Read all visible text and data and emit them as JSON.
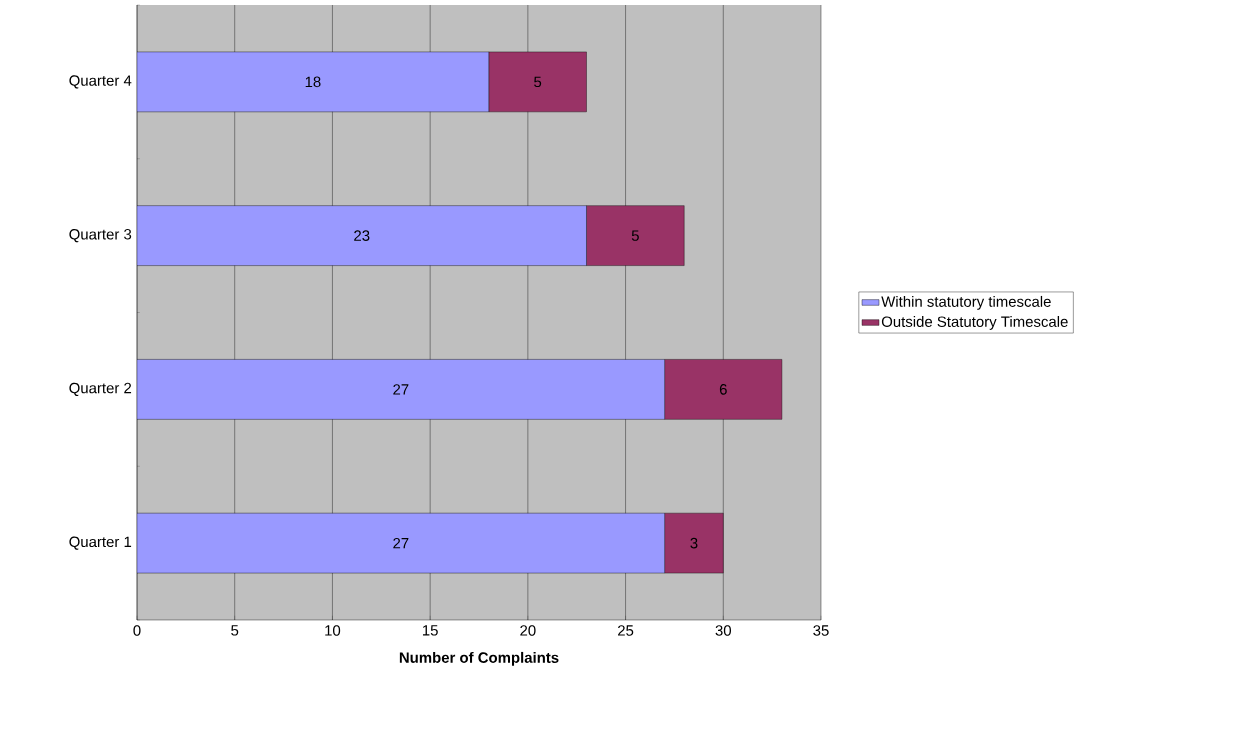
{
  "chart_data": {
    "type": "bar",
    "orientation": "horizontal",
    "stacked": true,
    "xlabel": "Number of Complaints",
    "categories": [
      "Quarter 4",
      "Quarter 3",
      "Quarter 2",
      "Quarter 1"
    ],
    "series": [
      {
        "name": "Within statutory timescale",
        "color": "#9999ff",
        "values": [
          18,
          23,
          27,
          27
        ]
      },
      {
        "name": "Outside Statutory Timescale",
        "color": "#993366",
        "values": [
          5,
          5,
          6,
          3
        ]
      }
    ],
    "xlim": [
      0,
      35
    ],
    "xticks": [
      0,
      5,
      10,
      15,
      20,
      25,
      30,
      35
    ],
    "grid": "x",
    "legend": "right",
    "data_labels": true
  }
}
